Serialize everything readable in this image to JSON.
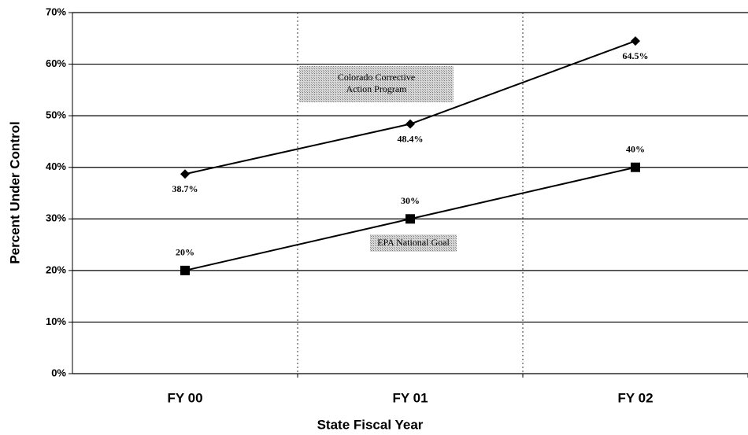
{
  "chart_data": {
    "type": "line",
    "x_label": "State Fiscal Year",
    "y_label": "Percent Under Control",
    "categories": [
      "FY 00",
      "FY 01",
      "FY 02"
    ],
    "series": [
      {
        "name": "Colorado Corrective Action Program",
        "color": "#000000",
        "marker": "diamond",
        "values": [
          38.7,
          48.4,
          64.5
        ],
        "value_labels": [
          "38.7%",
          "48.4%",
          "64.5%"
        ]
      },
      {
        "name": "EPA National Goal",
        "color": "#000000",
        "marker": "square",
        "values": [
          20,
          30,
          40
        ],
        "value_labels": [
          "20%",
          "30%",
          "40%"
        ]
      }
    ],
    "ylim": [
      0,
      70
    ],
    "yticks": [
      {
        "value": 0,
        "label": "0%"
      },
      {
        "value": 10,
        "label": "10%"
      },
      {
        "value": 20,
        "label": "20%"
      },
      {
        "value": 30,
        "label": "30%"
      },
      {
        "value": 40,
        "label": "40%"
      },
      {
        "value": 50,
        "label": "50%"
      },
      {
        "value": 60,
        "label": "60%"
      },
      {
        "value": 70,
        "label": "70%"
      }
    ],
    "grid": true
  }
}
